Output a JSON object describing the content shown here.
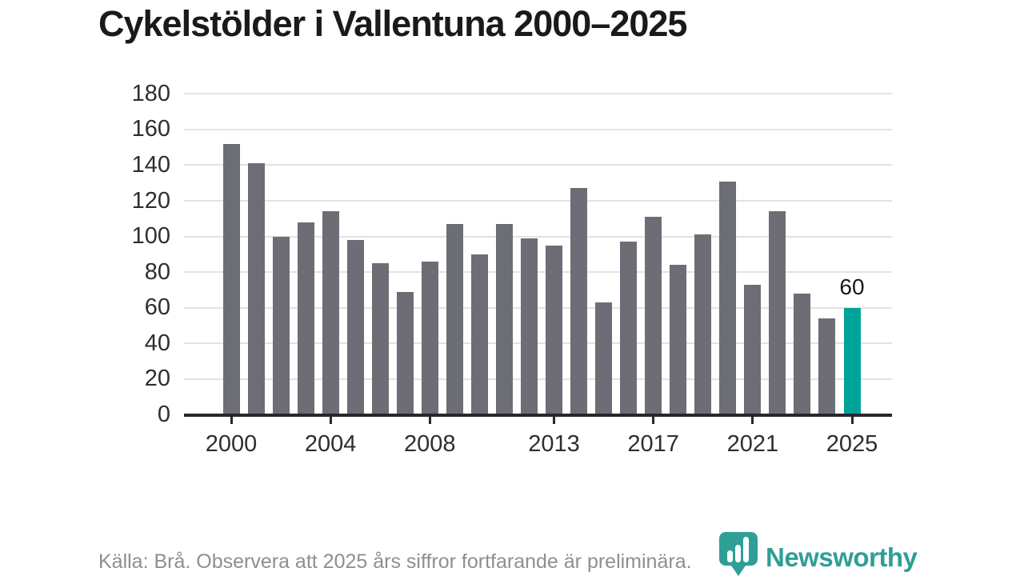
{
  "title": "Cykelstölder i Vallentuna 2000–2025",
  "source_note": "Källa: Brå. Observera att 2025 års siffror fortfarande är preliminära.",
  "logo": {
    "text": "Newsworthy",
    "icon": "newsworthy-pin-icon"
  },
  "colors": {
    "bar": "#6d6d75",
    "highlight": "#00a39a",
    "grid": "#e3e3e3",
    "axis": "#26282b",
    "title": "#1a1a1a",
    "tick_label": "#2e2e2e",
    "muted_text": "#8f8f8f",
    "logo_teal": "#2f9e96"
  },
  "chart_data": {
    "type": "bar",
    "title": "Cykelstölder i Vallentuna 2000–2025",
    "xlabel": "",
    "ylabel": "",
    "x": [
      2000,
      2001,
      2002,
      2003,
      2004,
      2005,
      2006,
      2007,
      2008,
      2009,
      2010,
      2011,
      2012,
      2013,
      2014,
      2015,
      2016,
      2017,
      2018,
      2019,
      2020,
      2021,
      2022,
      2023,
      2024,
      2025
    ],
    "values": [
      152,
      141,
      100,
      108,
      114,
      98,
      85,
      69,
      86,
      107,
      90,
      107,
      99,
      95,
      127,
      63,
      97,
      111,
      84,
      101,
      131,
      73,
      114,
      68,
      54,
      60
    ],
    "highlight_year": 2025,
    "highlight_value_label": "60",
    "ylim": [
      0,
      180
    ],
    "y_ticks": [
      0,
      20,
      40,
      60,
      80,
      100,
      120,
      140,
      160,
      180
    ],
    "x_ticks": [
      2000,
      2004,
      2008,
      2013,
      2017,
      2021,
      2025
    ],
    "grid": "horizontal",
    "legend": "none"
  }
}
